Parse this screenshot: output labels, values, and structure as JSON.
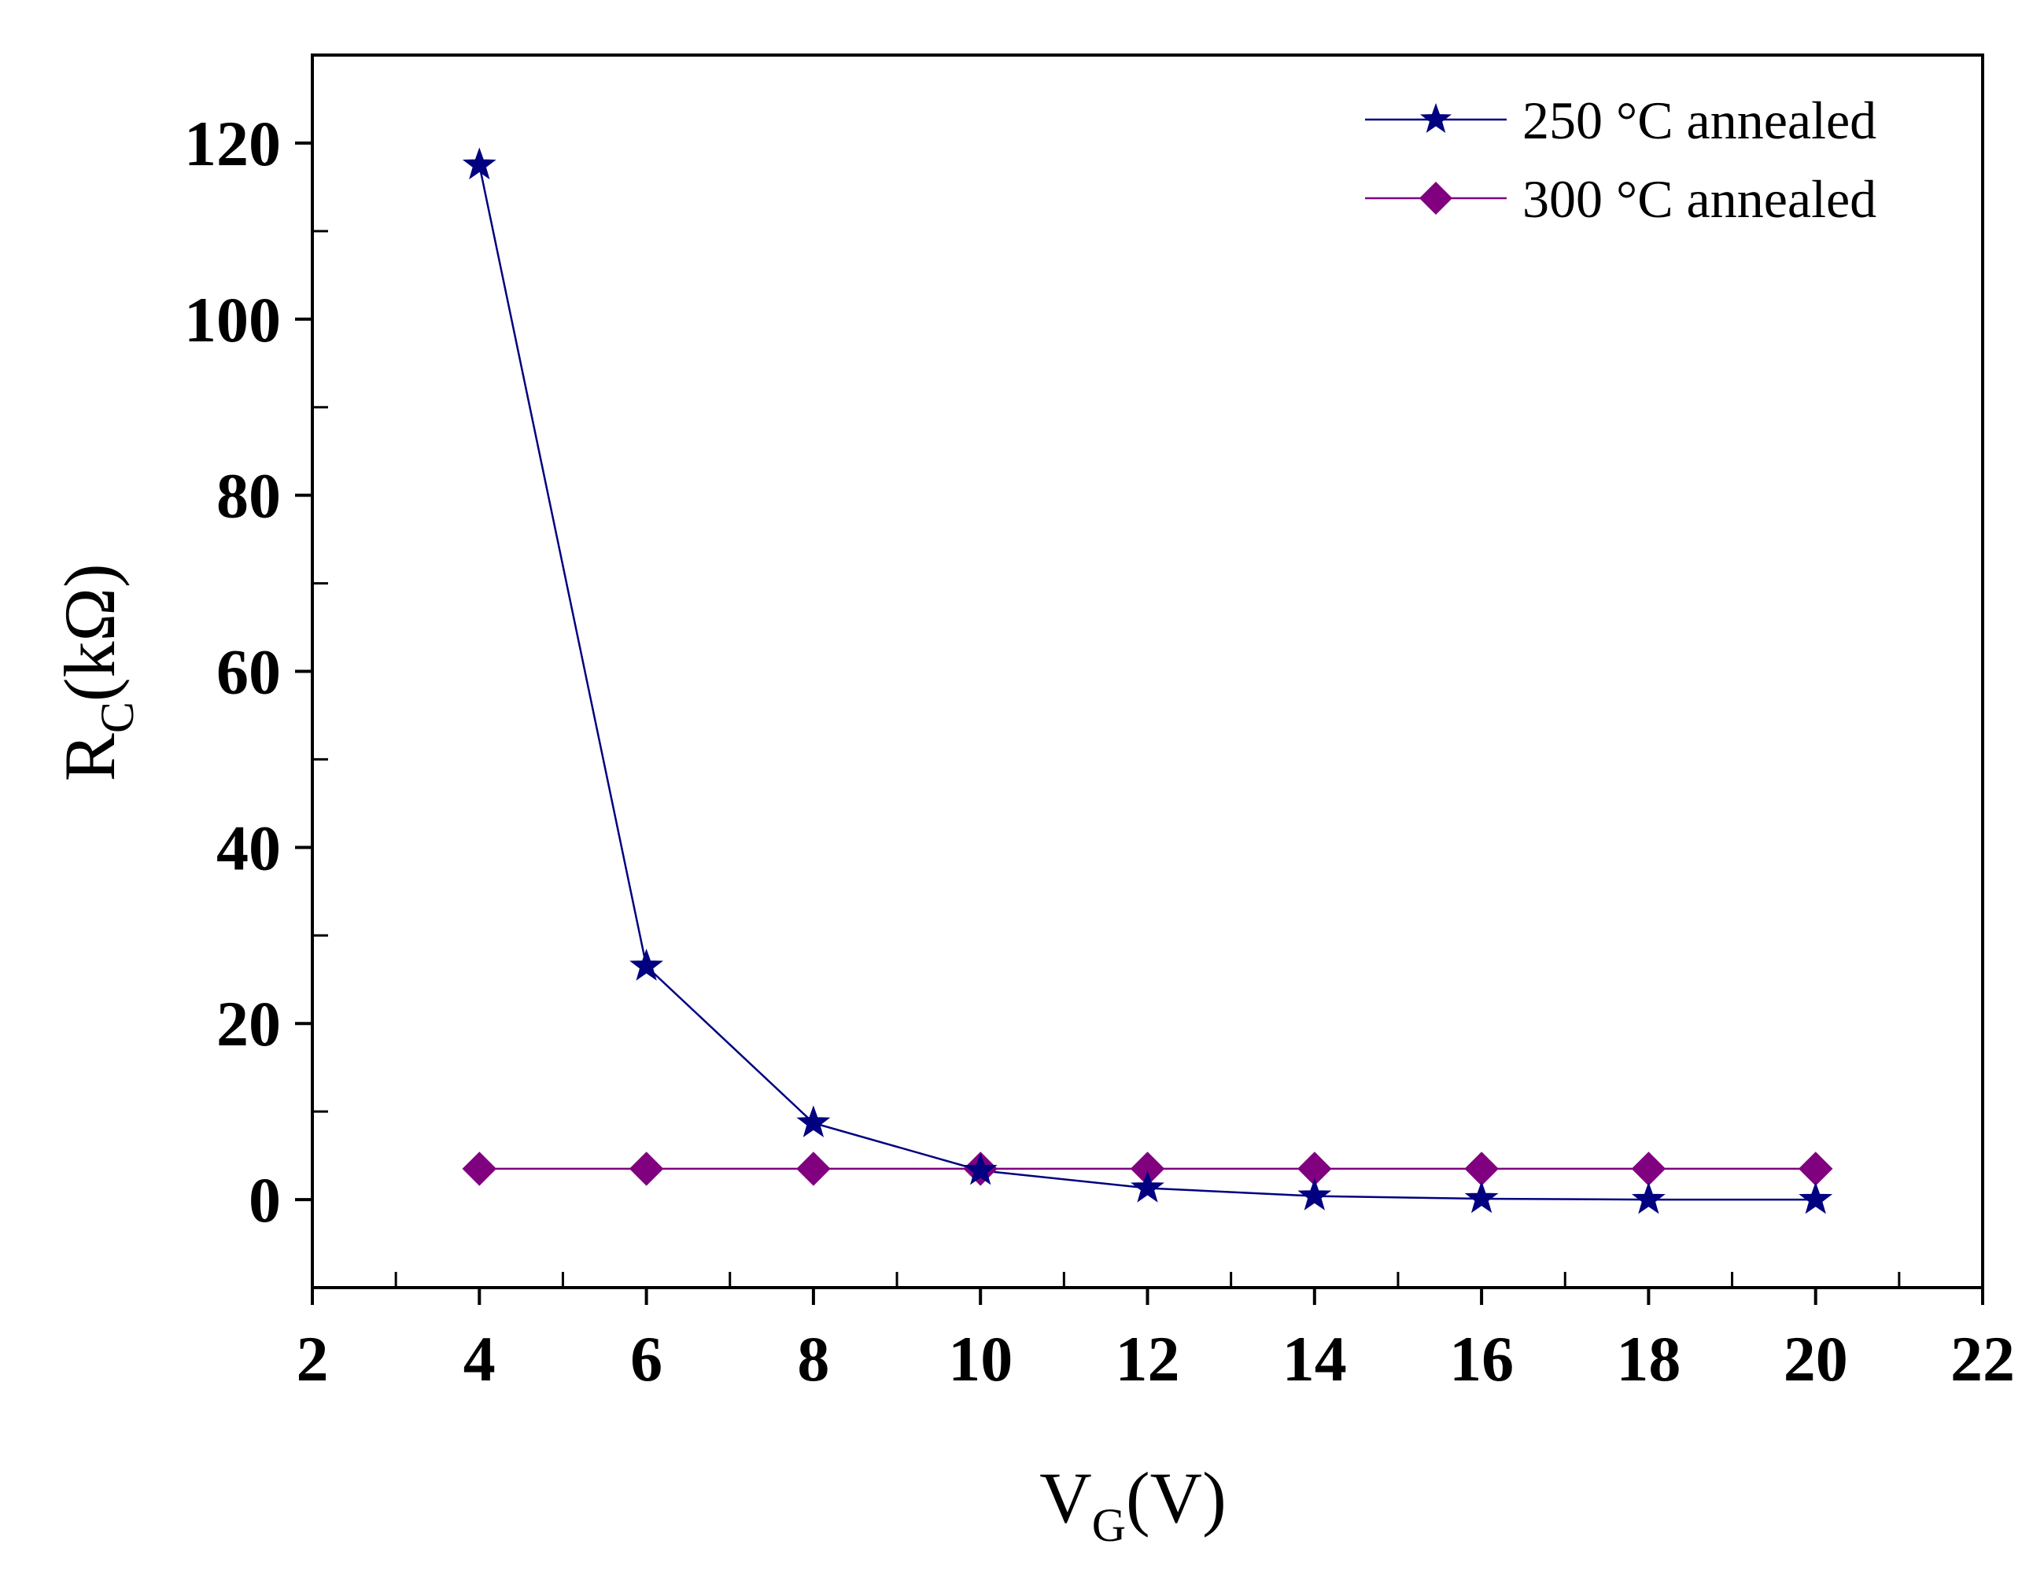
{
  "chart_data": {
    "type": "line",
    "title": "",
    "xlabel": {
      "main": "V",
      "sub": "G",
      "unit": "(V)"
    },
    "ylabel": {
      "main": "R",
      "sub": "C",
      "unit": "(kΩ)"
    },
    "xlim": [
      2,
      22
    ],
    "ylim": [
      -10,
      130
    ],
    "xticks": [
      2,
      4,
      6,
      8,
      10,
      12,
      14,
      16,
      18,
      20,
      22
    ],
    "yticks": [
      0,
      20,
      40,
      60,
      80,
      100,
      120
    ],
    "grid": false,
    "legend_position": "top-right",
    "series": [
      {
        "name": "250 °C annealed",
        "marker": "star",
        "color": "#000080",
        "x": [
          4,
          6,
          8,
          10,
          12,
          14,
          16,
          18,
          20
        ],
        "y": [
          117.5,
          26.5,
          8.7,
          3.3,
          1.3,
          0.4,
          0.1,
          0.0,
          0.0
        ]
      },
      {
        "name": "300 °C annealed",
        "marker": "diamond",
        "color": "#800080",
        "x": [
          4,
          6,
          8,
          10,
          12,
          14,
          16,
          18,
          20
        ],
        "y": [
          3.5,
          3.5,
          3.5,
          3.5,
          3.5,
          3.5,
          3.5,
          3.5,
          3.5
        ]
      }
    ]
  }
}
